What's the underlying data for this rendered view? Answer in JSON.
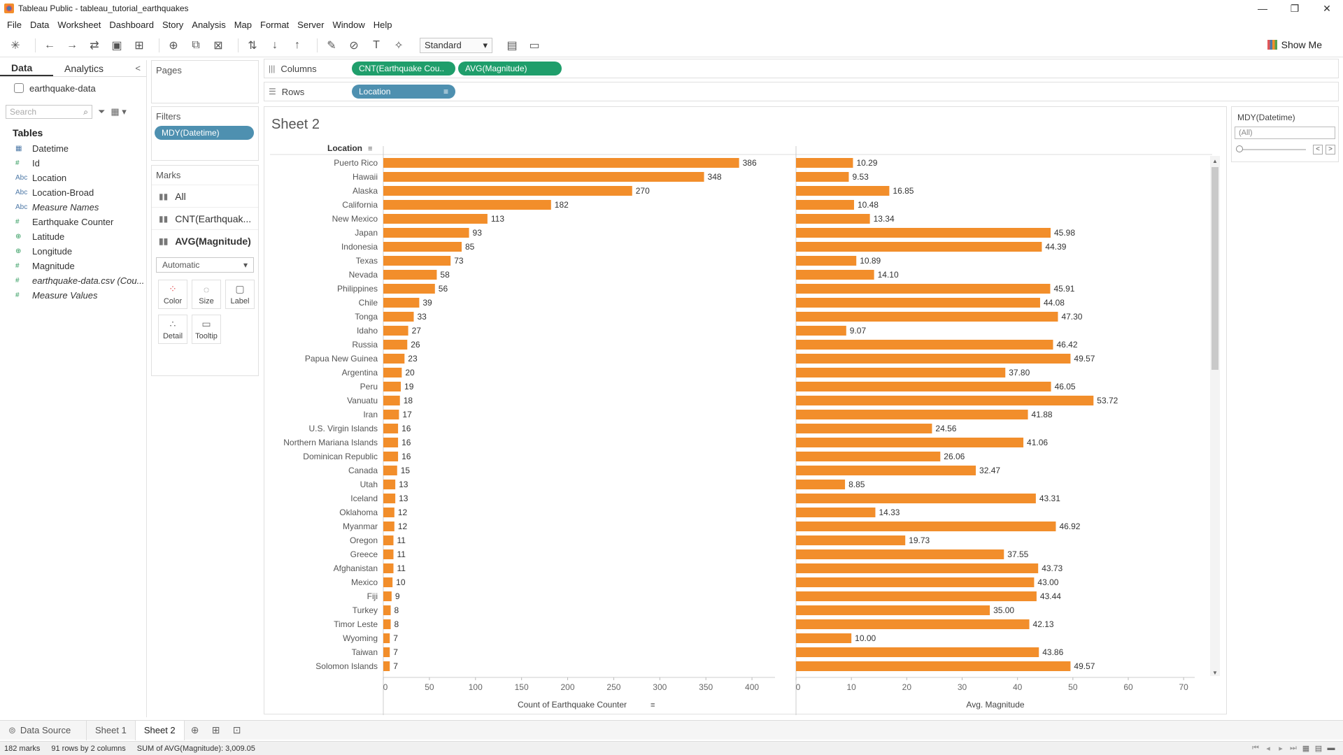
{
  "window": {
    "title": "Tableau Public - tableau_tutorial_earthquakes",
    "controls": [
      "—",
      "❐",
      "✕"
    ]
  },
  "menu": [
    "File",
    "Data",
    "Worksheet",
    "Dashboard",
    "Story",
    "Analysis",
    "Map",
    "Format",
    "Server",
    "Window",
    "Help"
  ],
  "toolbar": {
    "fit_select": "Standard",
    "show_me": "Show Me"
  },
  "data_pane": {
    "tabs": [
      "Data",
      "Analytics"
    ],
    "datasource": "earthquake-data",
    "search_placeholder": "Search",
    "tables_heading": "Tables",
    "fields": [
      {
        "type": "date",
        "name": "Datetime",
        "type_label": "▦"
      },
      {
        "type": "measure",
        "name": "Id",
        "type_label": "#"
      },
      {
        "type": "dimension",
        "name": "Location",
        "type_label": "Abc"
      },
      {
        "type": "dimension",
        "name": "Location-Broad",
        "type_label": "Abc"
      },
      {
        "type": "dimension-italic",
        "name": "Measure Names",
        "type_label": "Abc"
      },
      {
        "type": "measure",
        "name": "Earthquake Counter",
        "type_label": "#"
      },
      {
        "type": "geo",
        "name": "Latitude",
        "type_label": "⊕"
      },
      {
        "type": "geo",
        "name": "Longitude",
        "type_label": "⊕"
      },
      {
        "type": "measure",
        "name": "Magnitude",
        "type_label": "#"
      },
      {
        "type": "measure-italic",
        "name": "earthquake-data.csv (Cou...",
        "type_label": "#"
      },
      {
        "type": "measure-italic",
        "name": "Measure Values",
        "type_label": "#"
      }
    ]
  },
  "pages_card": {
    "label": "Pages"
  },
  "filters_card": {
    "label": "Filters",
    "pill": "MDY(Datetime)"
  },
  "marks_card": {
    "label": "Marks",
    "rows": [
      "All",
      "CNT(Earthquak...",
      "AVG(Magnitude)"
    ],
    "mark_type": "Automatic",
    "buttons": [
      "Color",
      "Size",
      "Label",
      "Detail",
      "Tooltip"
    ]
  },
  "shelves": {
    "columns_label": "Columns",
    "columns_pills": [
      "CNT(Earthquake Cou..",
      "AVG(Magnitude)"
    ],
    "rows_label": "Rows",
    "rows_pills": [
      "Location"
    ]
  },
  "sheet": {
    "title": "Sheet 2",
    "row_header": "Location"
  },
  "filter_card": {
    "title": "MDY(Datetime)",
    "value": "(All)"
  },
  "sheet_tabs": {
    "data_source": "Data Source",
    "tabs": [
      "Sheet 1",
      "Sheet 2"
    ],
    "active": "Sheet 2"
  },
  "status": {
    "marks": "182 marks",
    "dims": "91 rows by 2 columns",
    "sum": "SUM of AVG(Magnitude): 3,009.05"
  },
  "colors": {
    "bar": "#f28e2b",
    "pill_green": "#1f9e6b",
    "pill_blue": "#4e90b0"
  },
  "chart_data": [
    {
      "type": "bar",
      "orientation": "horizontal",
      "xlabel": "Count of Earthquake Counter",
      "xlim": [
        0,
        425
      ],
      "xticks": [
        0,
        50,
        100,
        150,
        200,
        250,
        300,
        350,
        400
      ],
      "categories": [
        "Puerto Rico",
        "Hawaii",
        "Alaska",
        "California",
        "New Mexico",
        "Japan",
        "Indonesia",
        "Texas",
        "Nevada",
        "Philippines",
        "Chile",
        "Tonga",
        "Idaho",
        "Russia",
        "Papua New Guinea",
        "Argentina",
        "Peru",
        "Vanuatu",
        "Iran",
        "U.S. Virgin Islands",
        "Northern Mariana Islands",
        "Dominican Republic",
        "Canada",
        "Utah",
        "Iceland",
        "Oklahoma",
        "Myanmar",
        "Oregon",
        "Greece",
        "Afghanistan",
        "Mexico",
        "Fiji",
        "Turkey",
        "Timor Leste",
        "Wyoming",
        "Taiwan",
        "Solomon Islands"
      ],
      "values": [
        386,
        348,
        270,
        182,
        113,
        93,
        85,
        73,
        58,
        56,
        39,
        33,
        27,
        26,
        23,
        20,
        19,
        18,
        17,
        16,
        16,
        16,
        15,
        13,
        13,
        12,
        12,
        11,
        11,
        11,
        10,
        9,
        8,
        8,
        7,
        7,
        7
      ],
      "labels": [
        "386",
        "348",
        "270",
        "182",
        "113",
        "93",
        "85",
        "73",
        "58",
        "56",
        "39",
        "33",
        "27",
        "26",
        "23",
        "20",
        "19",
        "18",
        "17",
        "16",
        "16",
        "16",
        "15",
        "13",
        "13",
        "12",
        "12",
        "11",
        "11",
        "11",
        "10",
        "9",
        "8",
        "8",
        "7",
        "7",
        "7"
      ]
    },
    {
      "type": "bar",
      "orientation": "horizontal",
      "xlabel": "Avg. Magnitude",
      "xlim": [
        0,
        72
      ],
      "xticks": [
        0,
        10,
        20,
        30,
        40,
        50,
        60,
        70
      ],
      "categories": [
        "Puerto Rico",
        "Hawaii",
        "Alaska",
        "California",
        "New Mexico",
        "Japan",
        "Indonesia",
        "Texas",
        "Nevada",
        "Philippines",
        "Chile",
        "Tonga",
        "Idaho",
        "Russia",
        "Papua New Guinea",
        "Argentina",
        "Peru",
        "Vanuatu",
        "Iran",
        "U.S. Virgin Islands",
        "Northern Mariana Islands",
        "Dominican Republic",
        "Canada",
        "Utah",
        "Iceland",
        "Oklahoma",
        "Myanmar",
        "Oregon",
        "Greece",
        "Afghanistan",
        "Mexico",
        "Fiji",
        "Turkey",
        "Timor Leste",
        "Wyoming",
        "Taiwan",
        "Solomon Islands"
      ],
      "values": [
        10.29,
        9.53,
        16.85,
        10.48,
        13.34,
        45.98,
        44.39,
        10.89,
        14.1,
        45.91,
        44.08,
        47.3,
        9.07,
        46.42,
        49.57,
        37.8,
        46.05,
        53.72,
        41.88,
        24.56,
        41.06,
        26.06,
        32.47,
        8.85,
        43.31,
        14.33,
        46.92,
        19.73,
        37.55,
        43.73,
        43.0,
        43.44,
        35.0,
        42.13,
        10.0,
        43.86,
        49.57
      ],
      "labels": [
        "10.29",
        "9.53",
        "16.85",
        "10.48",
        "13.34",
        "45.98",
        "44.39",
        "10.89",
        "14.10",
        "45.91",
        "44.08",
        "47.30",
        "9.07",
        "46.42",
        "49.57",
        "37.80",
        "46.05",
        "53.72",
        "41.88",
        "24.56",
        "41.06",
        "26.06",
        "32.47",
        "8.85",
        "43.31",
        "14.33",
        "46.92",
        "19.73",
        "37.55",
        "43.73",
        "43.00",
        "43.44",
        "35.00",
        "42.13",
        "10.00",
        "43.86",
        "49.57"
      ]
    }
  ]
}
